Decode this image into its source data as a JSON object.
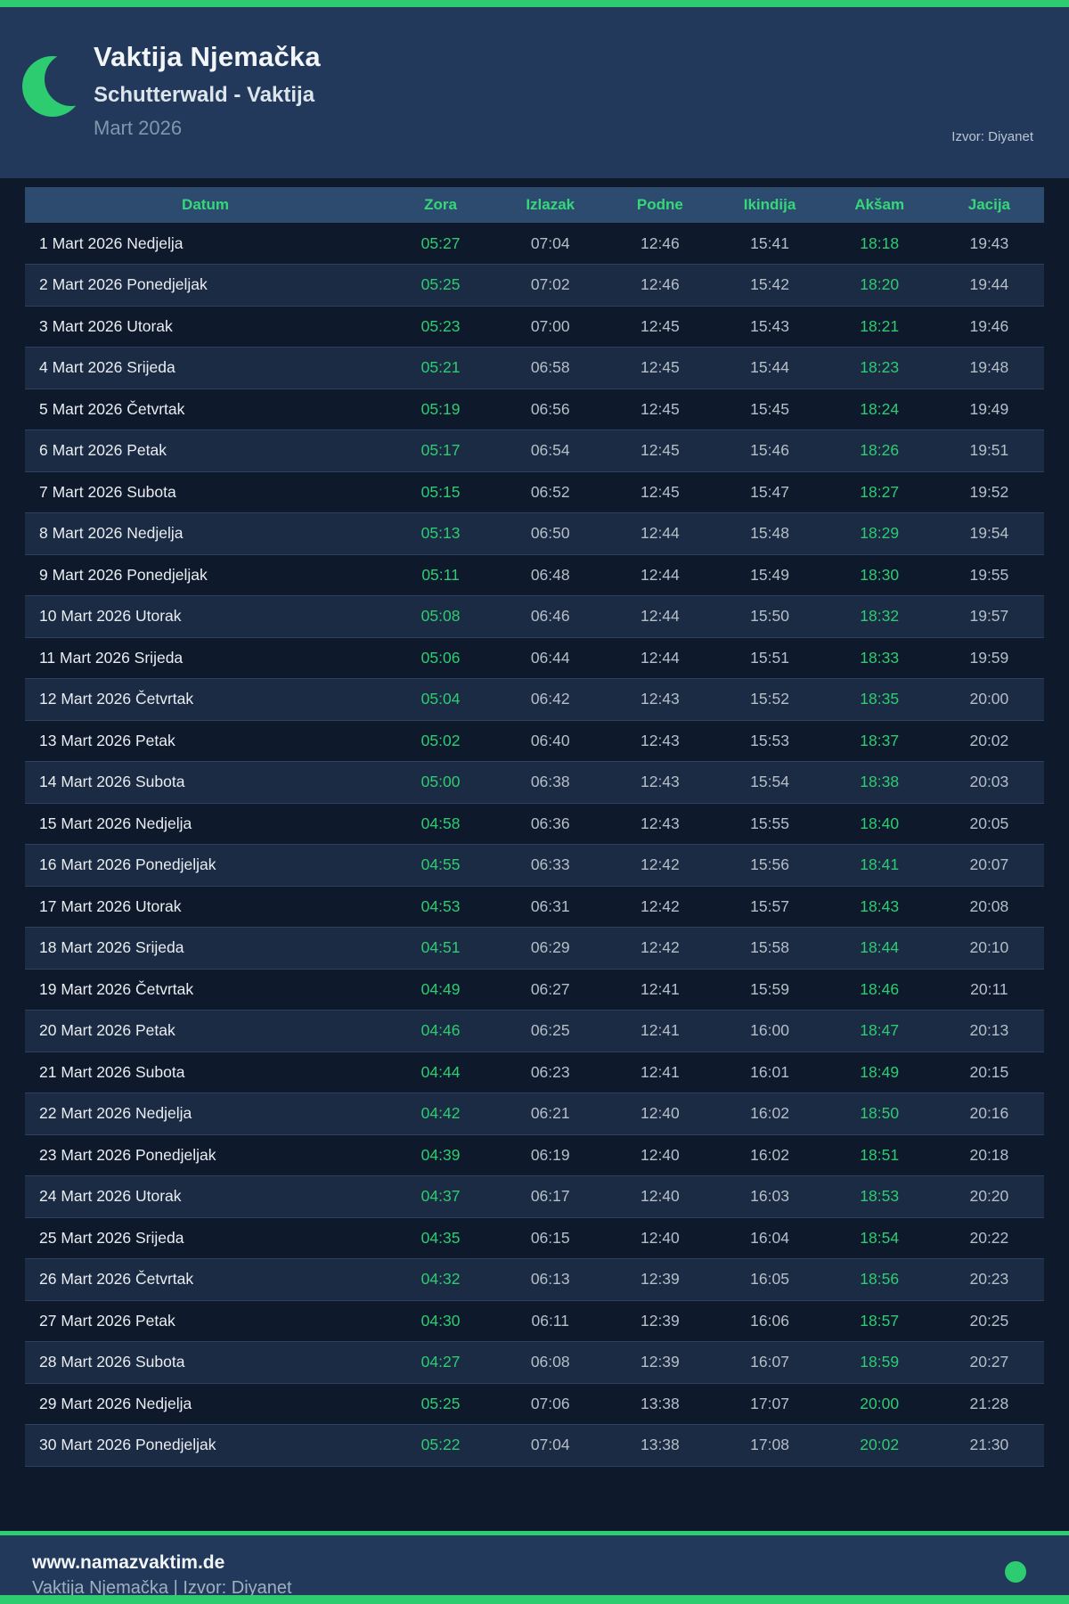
{
  "colors": {
    "accent_green": "#2ecc71",
    "page_bg": "#0e1a2c",
    "header_bg": "#22395b",
    "table_header_bg": "#2c4b6e",
    "table_header_text": "#36d778",
    "even_row_bg": "#1b2b43",
    "time_text": "#b6bec8",
    "date_text": "#e9edf1"
  },
  "header": {
    "title": "Vaktija Njemačka",
    "subtitle": "Schutterwald - Vaktija",
    "month": "Mart 2026",
    "source": "Izvor: Diyanet",
    "moon_icon": "crescent-moon"
  },
  "table": {
    "columns": [
      "Datum",
      "Zora",
      "Izlazak",
      "Podne",
      "Ikindija",
      "Akšam",
      "Jacija"
    ],
    "column_keys": [
      "date",
      "zora",
      "izlazak",
      "podne",
      "ikindija",
      "aksam",
      "jacija"
    ],
    "green_columns": [
      "zora",
      "aksam"
    ],
    "rows": [
      {
        "date": "1 Mart 2026 Nedjelja",
        "zora": "05:27",
        "izlazak": "07:04",
        "podne": "12:46",
        "ikindija": "15:41",
        "aksam": "18:18",
        "jacija": "19:43"
      },
      {
        "date": "2 Mart 2026 Ponedjeljak",
        "zora": "05:25",
        "izlazak": "07:02",
        "podne": "12:46",
        "ikindija": "15:42",
        "aksam": "18:20",
        "jacija": "19:44"
      },
      {
        "date": "3 Mart 2026 Utorak",
        "zora": "05:23",
        "izlazak": "07:00",
        "podne": "12:45",
        "ikindija": "15:43",
        "aksam": "18:21",
        "jacija": "19:46"
      },
      {
        "date": "4 Mart 2026 Srijeda",
        "zora": "05:21",
        "izlazak": "06:58",
        "podne": "12:45",
        "ikindija": "15:44",
        "aksam": "18:23",
        "jacija": "19:48"
      },
      {
        "date": "5 Mart 2026 Četvrtak",
        "zora": "05:19",
        "izlazak": "06:56",
        "podne": "12:45",
        "ikindija": "15:45",
        "aksam": "18:24",
        "jacija": "19:49"
      },
      {
        "date": "6 Mart 2026 Petak",
        "zora": "05:17",
        "izlazak": "06:54",
        "podne": "12:45",
        "ikindija": "15:46",
        "aksam": "18:26",
        "jacija": "19:51"
      },
      {
        "date": "7 Mart 2026 Subota",
        "zora": "05:15",
        "izlazak": "06:52",
        "podne": "12:45",
        "ikindija": "15:47",
        "aksam": "18:27",
        "jacija": "19:52"
      },
      {
        "date": "8 Mart 2026 Nedjelja",
        "zora": "05:13",
        "izlazak": "06:50",
        "podne": "12:44",
        "ikindija": "15:48",
        "aksam": "18:29",
        "jacija": "19:54"
      },
      {
        "date": "9 Mart 2026 Ponedjeljak",
        "zora": "05:11",
        "izlazak": "06:48",
        "podne": "12:44",
        "ikindija": "15:49",
        "aksam": "18:30",
        "jacija": "19:55"
      },
      {
        "date": "10 Mart 2026 Utorak",
        "zora": "05:08",
        "izlazak": "06:46",
        "podne": "12:44",
        "ikindija": "15:50",
        "aksam": "18:32",
        "jacija": "19:57"
      },
      {
        "date": "11 Mart 2026 Srijeda",
        "zora": "05:06",
        "izlazak": "06:44",
        "podne": "12:44",
        "ikindija": "15:51",
        "aksam": "18:33",
        "jacija": "19:59"
      },
      {
        "date": "12 Mart 2026 Četvrtak",
        "zora": "05:04",
        "izlazak": "06:42",
        "podne": "12:43",
        "ikindija": "15:52",
        "aksam": "18:35",
        "jacija": "20:00"
      },
      {
        "date": "13 Mart 2026 Petak",
        "zora": "05:02",
        "izlazak": "06:40",
        "podne": "12:43",
        "ikindija": "15:53",
        "aksam": "18:37",
        "jacija": "20:02"
      },
      {
        "date": "14 Mart 2026 Subota",
        "zora": "05:00",
        "izlazak": "06:38",
        "podne": "12:43",
        "ikindija": "15:54",
        "aksam": "18:38",
        "jacija": "20:03"
      },
      {
        "date": "15 Mart 2026 Nedjelja",
        "zora": "04:58",
        "izlazak": "06:36",
        "podne": "12:43",
        "ikindija": "15:55",
        "aksam": "18:40",
        "jacija": "20:05"
      },
      {
        "date": "16 Mart 2026 Ponedjeljak",
        "zora": "04:55",
        "izlazak": "06:33",
        "podne": "12:42",
        "ikindija": "15:56",
        "aksam": "18:41",
        "jacija": "20:07"
      },
      {
        "date": "17 Mart 2026 Utorak",
        "zora": "04:53",
        "izlazak": "06:31",
        "podne": "12:42",
        "ikindija": "15:57",
        "aksam": "18:43",
        "jacija": "20:08"
      },
      {
        "date": "18 Mart 2026 Srijeda",
        "zora": "04:51",
        "izlazak": "06:29",
        "podne": "12:42",
        "ikindija": "15:58",
        "aksam": "18:44",
        "jacija": "20:10"
      },
      {
        "date": "19 Mart 2026 Četvrtak",
        "zora": "04:49",
        "izlazak": "06:27",
        "podne": "12:41",
        "ikindija": "15:59",
        "aksam": "18:46",
        "jacija": "20:11"
      },
      {
        "date": "20 Mart 2026 Petak",
        "zora": "04:46",
        "izlazak": "06:25",
        "podne": "12:41",
        "ikindija": "16:00",
        "aksam": "18:47",
        "jacija": "20:13"
      },
      {
        "date": "21 Mart 2026 Subota",
        "zora": "04:44",
        "izlazak": "06:23",
        "podne": "12:41",
        "ikindija": "16:01",
        "aksam": "18:49",
        "jacija": "20:15"
      },
      {
        "date": "22 Mart 2026 Nedjelja",
        "zora": "04:42",
        "izlazak": "06:21",
        "podne": "12:40",
        "ikindija": "16:02",
        "aksam": "18:50",
        "jacija": "20:16"
      },
      {
        "date": "23 Mart 2026 Ponedjeljak",
        "zora": "04:39",
        "izlazak": "06:19",
        "podne": "12:40",
        "ikindija": "16:02",
        "aksam": "18:51",
        "jacija": "20:18"
      },
      {
        "date": "24 Mart 2026 Utorak",
        "zora": "04:37",
        "izlazak": "06:17",
        "podne": "12:40",
        "ikindija": "16:03",
        "aksam": "18:53",
        "jacija": "20:20"
      },
      {
        "date": "25 Mart 2026 Srijeda",
        "zora": "04:35",
        "izlazak": "06:15",
        "podne": "12:40",
        "ikindija": "16:04",
        "aksam": "18:54",
        "jacija": "20:22"
      },
      {
        "date": "26 Mart 2026 Četvrtak",
        "zora": "04:32",
        "izlazak": "06:13",
        "podne": "12:39",
        "ikindija": "16:05",
        "aksam": "18:56",
        "jacija": "20:23"
      },
      {
        "date": "27 Mart 2026 Petak",
        "zora": "04:30",
        "izlazak": "06:11",
        "podne": "12:39",
        "ikindija": "16:06",
        "aksam": "18:57",
        "jacija": "20:25"
      },
      {
        "date": "28 Mart 2026 Subota",
        "zora": "04:27",
        "izlazak": "06:08",
        "podne": "12:39",
        "ikindija": "16:07",
        "aksam": "18:59",
        "jacija": "20:27"
      },
      {
        "date": "29 Mart 2026 Nedjelja",
        "zora": "05:25",
        "izlazak": "07:06",
        "podne": "13:38",
        "ikindija": "17:07",
        "aksam": "20:00",
        "jacija": "21:28"
      },
      {
        "date": "30 Mart 2026 Ponedjeljak",
        "zora": "05:22",
        "izlazak": "07:04",
        "podne": "13:38",
        "ikindija": "17:08",
        "aksam": "20:02",
        "jacija": "21:30"
      }
    ]
  },
  "footer": {
    "website": "www.namazvaktim.de",
    "tagline": "Vaktija Njemačka | Izvor: Diyanet",
    "dot_icon": "green-dot"
  }
}
